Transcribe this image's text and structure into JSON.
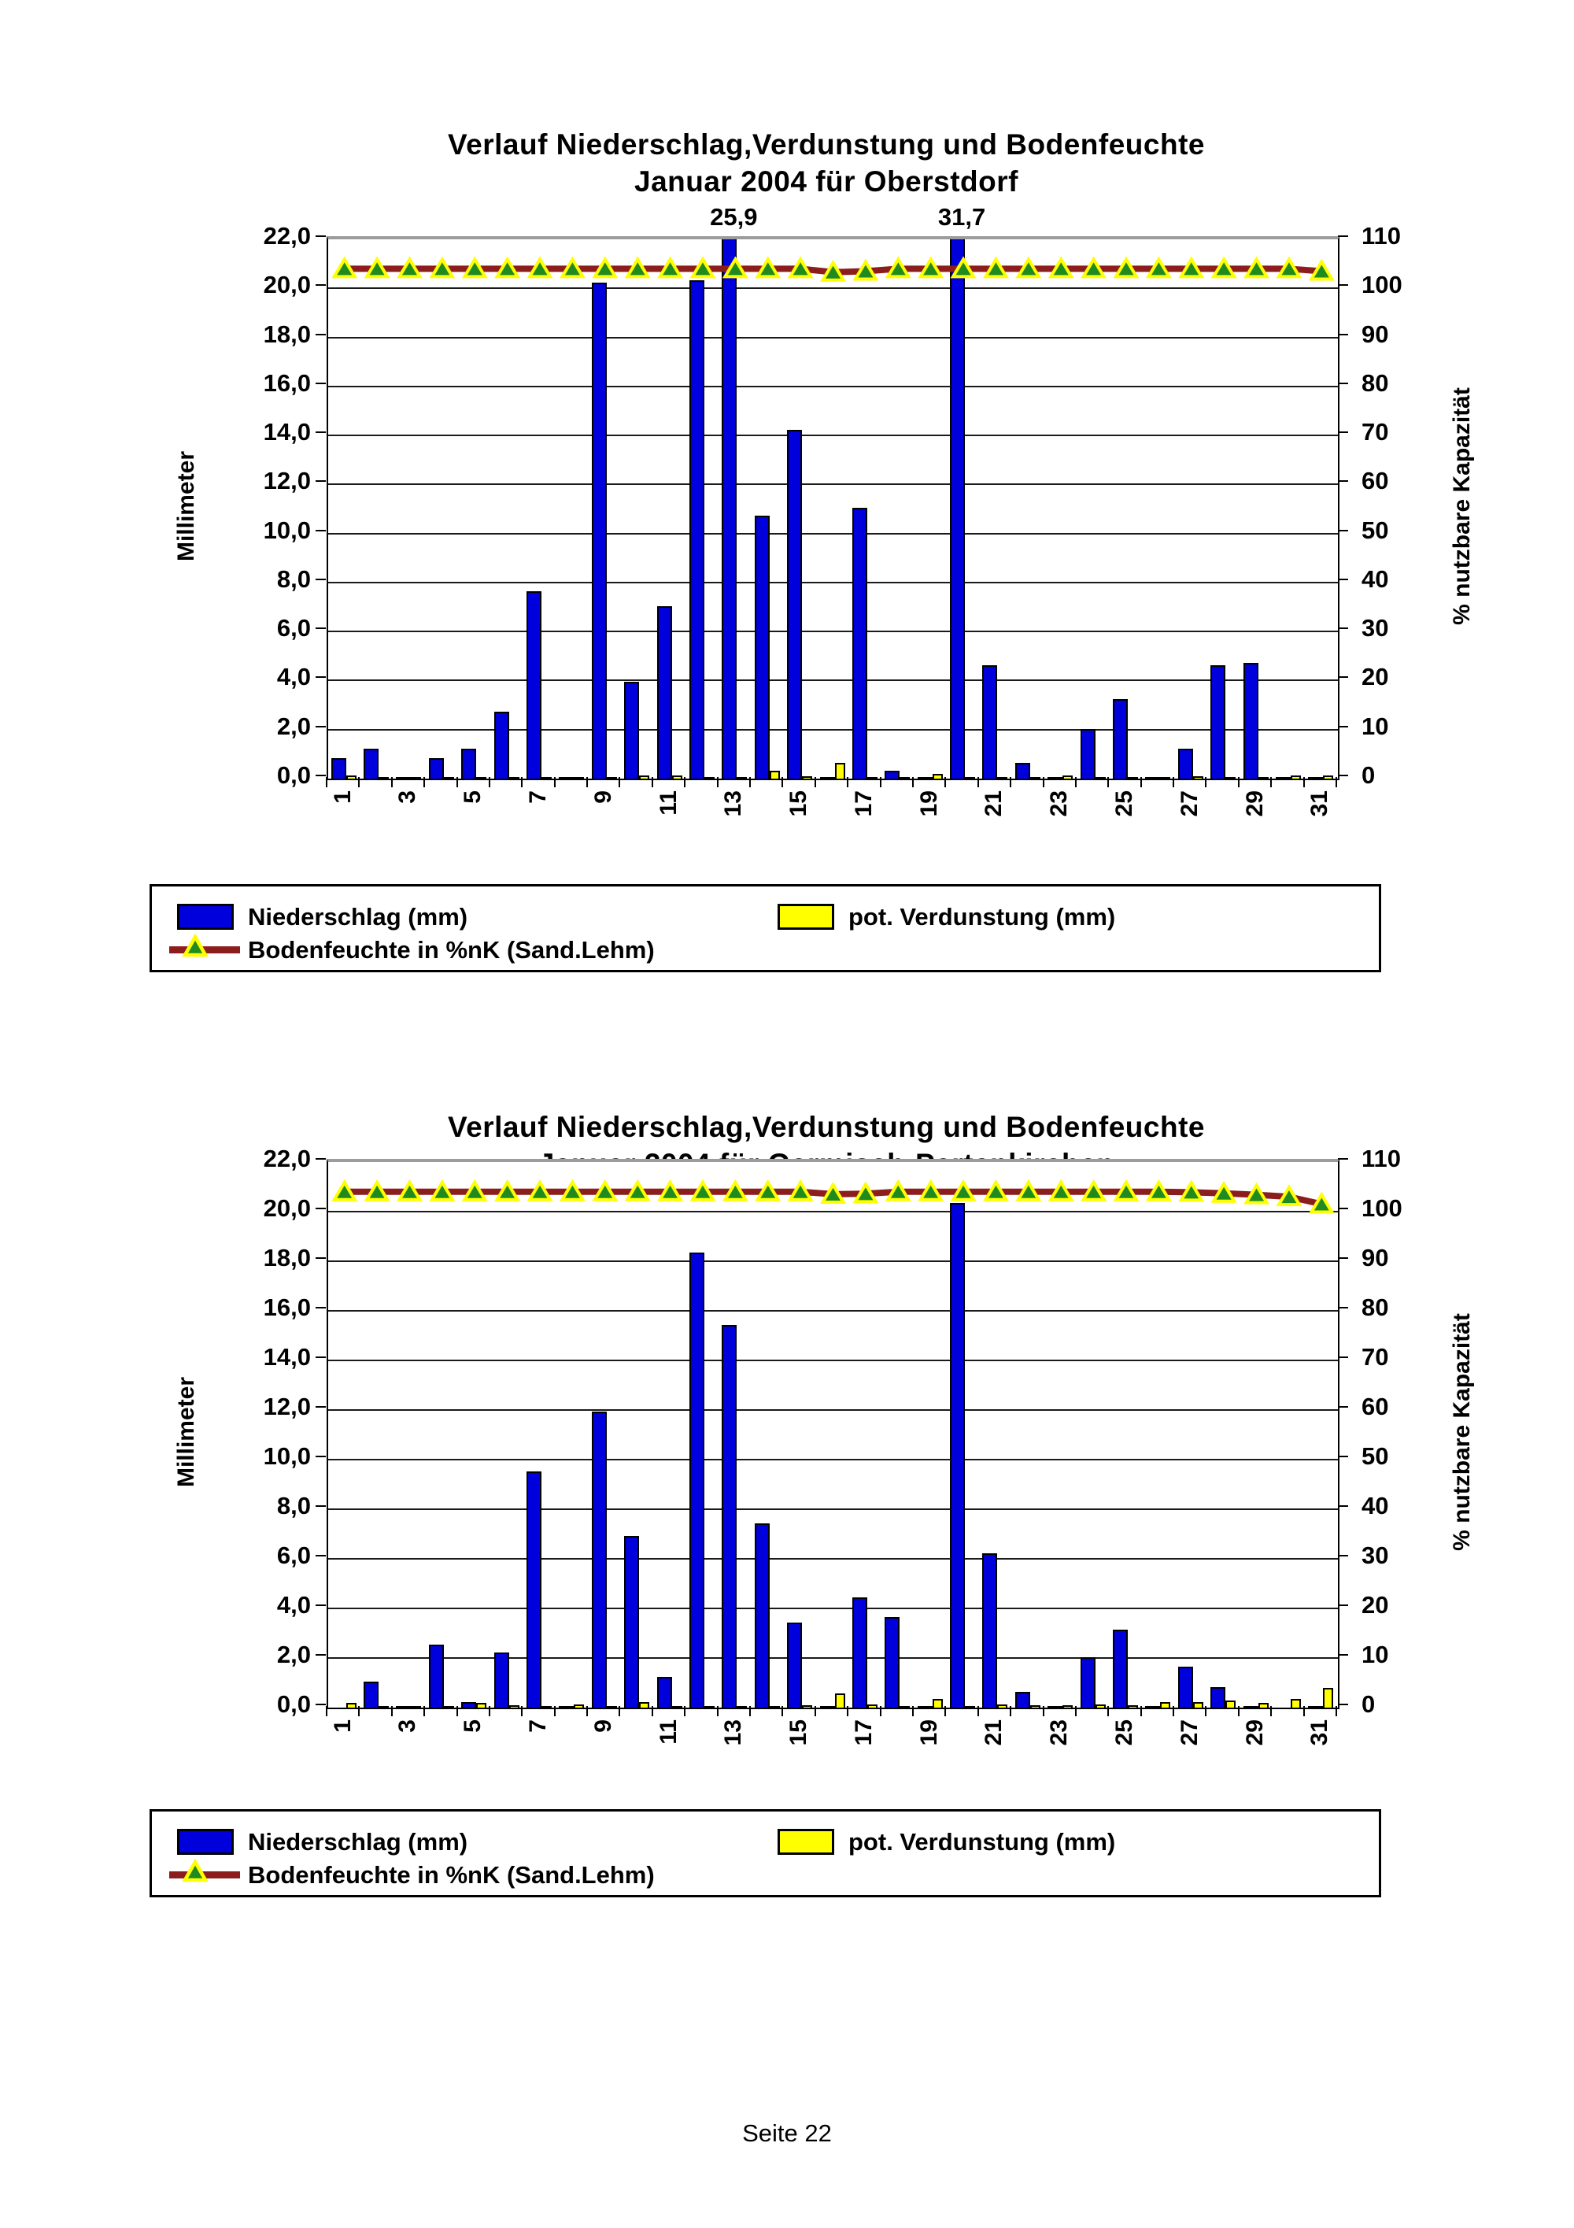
{
  "page": {
    "footer": "Seite 22"
  },
  "colors": {
    "niederschlag": "#0000dd",
    "verdunstung": "#ffff00",
    "bodenfeuchte_line": "#8b1d1d",
    "marker_fill": "#1f8b1f",
    "marker_stroke": "#ffff00",
    "grid": "#1a1a1a",
    "plot_top_border": "#9c9c9c"
  },
  "legend": {
    "niederschlag": "Niederschlag (mm)",
    "verdunstung": "pot. Verdunstung (mm)",
    "bodenfeuchte": "Bodenfeuchte in %nK (Sand.Lehm)"
  },
  "chart_data": [
    {
      "type": "bar",
      "title_line1": "Verlauf Niederschlag,Verdunstung und Bodenfeuchte",
      "title_line2": "Januar 2004 für Oberstdorf",
      "ylabel_left": "Millimeter",
      "ylabel_right": "% nutzbare Kapazität",
      "ylim_left": [
        0,
        22
      ],
      "ylim_right": [
        0,
        110
      ],
      "yticks_left": [
        "22,0",
        "20,0",
        "18,0",
        "16,0",
        "14,0",
        "12,0",
        "10,0",
        "8,0",
        "6,0",
        "4,0",
        "2,0",
        "0,0"
      ],
      "yticks_right": [
        "110",
        "100",
        "90",
        "80",
        "70",
        "60",
        "50",
        "40",
        "30",
        "20",
        "10",
        "0"
      ],
      "x": [
        1,
        2,
        3,
        4,
        5,
        6,
        7,
        8,
        9,
        10,
        11,
        12,
        13,
        14,
        15,
        16,
        17,
        18,
        19,
        20,
        21,
        22,
        23,
        24,
        25,
        26,
        27,
        28,
        29,
        30,
        31
      ],
      "xtick_labels": [
        "1",
        "3",
        "5",
        "7",
        "9",
        "11",
        "13",
        "15",
        "17",
        "19",
        "21",
        "23",
        "25",
        "27",
        "29",
        "31"
      ],
      "grid": true,
      "legend_position": "bottom",
      "series": [
        {
          "name": "Niederschlag (mm)",
          "axis": "left",
          "values": [
            0.9,
            1.3,
            0.1,
            0.9,
            1.3,
            2.8,
            7.7,
            0.1,
            20.3,
            4.0,
            7.1,
            20.4,
            25.9,
            10.8,
            14.3,
            0.1,
            11.1,
            0.4,
            0.1,
            31.7,
            4.7,
            0.7,
            0.1,
            2.1,
            3.3,
            0.1,
            1.3,
            4.7,
            4.8,
            0.1,
            0.1
          ]
        },
        {
          "name": "pot. Verdunstung (mm)",
          "axis": "left",
          "values": [
            0.2,
            0.1,
            0.05,
            0.1,
            0.1,
            0.1,
            0.1,
            0.05,
            0.1,
            0.2,
            0.2,
            0.1,
            0.1,
            0.4,
            0.15,
            0.7,
            0.1,
            0.1,
            0.25,
            0.05,
            0.1,
            0.1,
            0.2,
            0.1,
            0.1,
            0.1,
            0.15,
            0.1,
            0.1,
            0.2,
            0.2
          ]
        },
        {
          "name": "Bodenfeuchte in %nK (Sand.Lehm)",
          "axis": "right",
          "values": [
            104,
            104,
            104,
            104,
            104,
            104,
            104,
            104,
            104,
            104,
            104,
            104,
            104,
            104,
            104,
            103.3,
            103.5,
            104,
            104,
            104,
            104,
            104,
            104,
            104,
            104,
            104,
            104,
            104,
            104,
            104,
            103.5
          ]
        }
      ],
      "annotations": [
        {
          "day": 13,
          "label": "25,9"
        },
        {
          "day": 20,
          "label": "31,7"
        }
      ]
    },
    {
      "type": "bar",
      "title_line1": "Verlauf Niederschlag,Verdunstung und Bodenfeuchte",
      "title_line2": "Januar 2004 für Garmisch-Partenkirchen",
      "ylabel_left": "Millimeter",
      "ylabel_right": "% nutzbare Kapazität",
      "ylim_left": [
        0,
        22
      ],
      "ylim_right": [
        0,
        110
      ],
      "yticks_left": [
        "22,0",
        "20,0",
        "18,0",
        "16,0",
        "14,0",
        "12,0",
        "10,0",
        "8,0",
        "6,0",
        "4,0",
        "2,0",
        "0,0"
      ],
      "yticks_right": [
        "110",
        "100",
        "90",
        "80",
        "70",
        "60",
        "50",
        "40",
        "30",
        "20",
        "10",
        "0"
      ],
      "x": [
        1,
        2,
        3,
        4,
        5,
        6,
        7,
        8,
        9,
        10,
        11,
        12,
        13,
        14,
        15,
        16,
        17,
        18,
        19,
        20,
        21,
        22,
        23,
        24,
        25,
        26,
        27,
        28,
        29,
        30,
        31
      ],
      "xtick_labels": [
        "1",
        "3",
        "5",
        "7",
        "9",
        "11",
        "13",
        "15",
        "17",
        "19",
        "21",
        "23",
        "25",
        "27",
        "29",
        "31"
      ],
      "grid": true,
      "legend_position": "bottom",
      "series": [
        {
          "name": "Niederschlag (mm)",
          "axis": "left",
          "values": [
            0,
            1.1,
            0.1,
            2.6,
            0.3,
            2.3,
            9.6,
            0.1,
            12.0,
            7.0,
            1.3,
            18.4,
            15.5,
            7.5,
            3.5,
            0.1,
            4.5,
            3.7,
            0.1,
            20.4,
            6.3,
            0.7,
            0.1,
            2.1,
            3.2,
            0.05,
            1.7,
            0.9,
            0.1,
            0,
            0.1
          ]
        },
        {
          "name": "pot. Verdunstung (mm)",
          "axis": "left",
          "values": [
            0.25,
            0.1,
            0.05,
            0.1,
            0.25,
            0.15,
            0.1,
            0.2,
            0.05,
            0.3,
            0.1,
            0.05,
            0.1,
            0.1,
            0.15,
            0.65,
            0.2,
            0.05,
            0.4,
            0.05,
            0.2,
            0.15,
            0.15,
            0.2,
            0.15,
            0.3,
            0.3,
            0.35,
            0.25,
            0.4,
            0.85
          ]
        },
        {
          "name": "Bodenfeuchte in %nK (Sand.Lehm)",
          "axis": "right",
          "values": [
            104,
            104,
            104,
            104,
            104,
            104,
            104,
            104,
            104,
            104,
            104,
            104,
            104,
            104,
            104,
            103.5,
            103.6,
            104,
            104,
            104,
            104,
            104,
            104,
            104,
            104,
            104,
            103.9,
            103.7,
            103.4,
            103,
            101.5
          ]
        }
      ],
      "annotations": []
    }
  ]
}
